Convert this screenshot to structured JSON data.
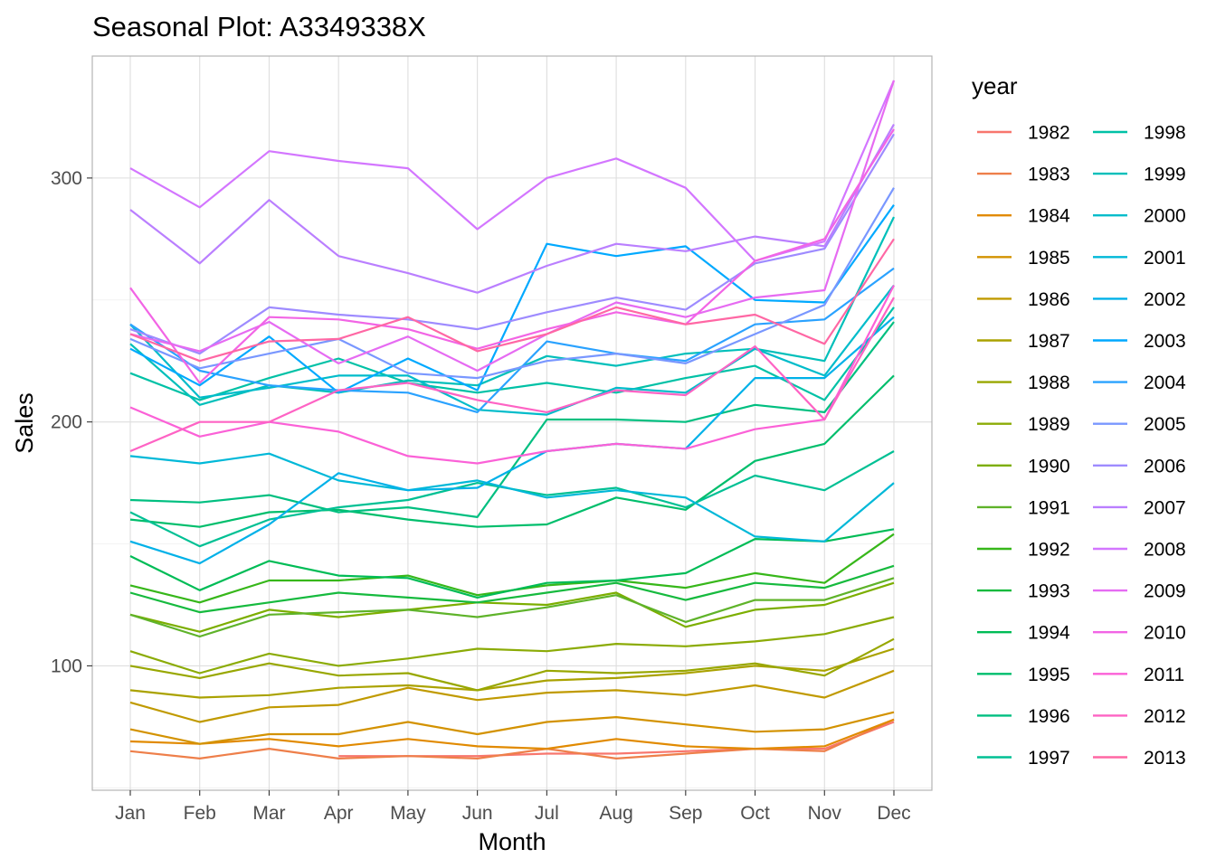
{
  "chart_data": {
    "type": "line",
    "title": "Seasonal Plot: A3349338X",
    "xlabel": "Month",
    "ylabel": "Sales",
    "categories": [
      "Jan",
      "Feb",
      "Mar",
      "Apr",
      "May",
      "Jun",
      "Jul",
      "Aug",
      "Sep",
      "Oct",
      "Nov",
      "Dec"
    ],
    "ylim": [
      49,
      350
    ],
    "yticks": [
      100,
      200,
      300
    ],
    "grid": true,
    "legend": {
      "title": "year",
      "position": "right",
      "columns": 2
    },
    "series": [
      {
        "name": "1982",
        "color": "#F8766D",
        "values": [
          null,
          null,
          null,
          63,
          63,
          63,
          64,
          64,
          65,
          66,
          66,
          77
        ]
      },
      {
        "name": "1983",
        "color": "#EE7F4A",
        "values": [
          65,
          62,
          66,
          62,
          63,
          62,
          66,
          62,
          64,
          66,
          65,
          78
        ]
      },
      {
        "name": "1984",
        "color": "#E18A00",
        "values": [
          69,
          68,
          70,
          67,
          70,
          67,
          66,
          70,
          67,
          66,
          67,
          78
        ]
      },
      {
        "name": "1985",
        "color": "#D39200",
        "values": [
          74,
          68,
          72,
          72,
          77,
          72,
          77,
          79,
          76,
          73,
          74,
          81
        ]
      },
      {
        "name": "1986",
        "color": "#C09A00",
        "values": [
          85,
          77,
          83,
          84,
          91,
          86,
          89,
          90,
          88,
          92,
          87,
          98
        ]
      },
      {
        "name": "1987",
        "color": "#AAA200",
        "values": [
          90,
          87,
          88,
          91,
          92,
          90,
          94,
          95,
          97,
          100,
          98,
          107
        ]
      },
      {
        "name": "1988",
        "color": "#98A700",
        "values": [
          100,
          95,
          101,
          96,
          97,
          90,
          98,
          97,
          98,
          101,
          96,
          111
        ]
      },
      {
        "name": "1989",
        "color": "#8BAB06",
        "values": [
          106,
          97,
          105,
          100,
          103,
          107,
          106,
          109,
          108,
          110,
          113,
          120
        ]
      },
      {
        "name": "1990",
        "color": "#7CAE00",
        "values": [
          121,
          114,
          123,
          120,
          123,
          126,
          125,
          130,
          116,
          123,
          125,
          134
        ]
      },
      {
        "name": "1991",
        "color": "#5FB32A",
        "values": [
          121,
          112,
          121,
          122,
          123,
          120,
          124,
          129,
          118,
          127,
          127,
          136
        ]
      },
      {
        "name": "1992",
        "color": "#37B71A",
        "values": [
          133,
          126,
          135,
          135,
          137,
          129,
          133,
          135,
          132,
          138,
          134,
          154
        ]
      },
      {
        "name": "1993",
        "color": "#16BA3E",
        "values": [
          130,
          122,
          126,
          130,
          128,
          126,
          130,
          134,
          127,
          134,
          132,
          141
        ]
      },
      {
        "name": "1994",
        "color": "#00BC56",
        "values": [
          145,
          131,
          143,
          137,
          136,
          128,
          134,
          135,
          138,
          152,
          151,
          156
        ]
      },
      {
        "name": "1995",
        "color": "#00BE6C",
        "values": [
          160,
          157,
          163,
          164,
          160,
          157,
          158,
          169,
          164,
          184,
          191,
          219
        ]
      },
      {
        "name": "1996",
        "color": "#00BF80",
        "values": [
          168,
          167,
          170,
          163,
          165,
          161,
          201,
          201,
          200,
          207,
          204,
          241
        ]
      },
      {
        "name": "1997",
        "color": "#00C094",
        "values": [
          163,
          149,
          160,
          165,
          168,
          175,
          170,
          173,
          165,
          178,
          172,
          188
        ]
      },
      {
        "name": "1998",
        "color": "#00C1A6",
        "values": [
          220,
          209,
          218,
          226,
          216,
          212,
          216,
          212,
          218,
          223,
          209,
          247
        ]
      },
      {
        "name": "1999",
        "color": "#00BFBA",
        "values": [
          232,
          207,
          215,
          212,
          217,
          215,
          227,
          223,
          228,
          230,
          225,
          284
        ]
      },
      {
        "name": "2000",
        "color": "#00BCCA",
        "values": [
          240,
          210,
          214,
          219,
          219,
          205,
          203,
          214,
          212,
          230,
          219,
          256
        ]
      },
      {
        "name": "2001",
        "color": "#00B8D8",
        "values": [
          186,
          183,
          187,
          176,
          172,
          176,
          169,
          172,
          169,
          153,
          151,
          175
        ]
      },
      {
        "name": "2002",
        "color": "#00B1E8",
        "values": [
          151,
          142,
          158,
          179,
          172,
          173,
          188,
          191,
          189,
          218,
          218,
          243
        ]
      },
      {
        "name": "2003",
        "color": "#00A9FF",
        "values": [
          230,
          215,
          235,
          212,
          226,
          213,
          273,
          268,
          272,
          250,
          249,
          289
        ]
      },
      {
        "name": "2004",
        "color": "#2AA2FF",
        "values": [
          240,
          221,
          215,
          213,
          212,
          204,
          233,
          228,
          225,
          240,
          242,
          263
        ]
      },
      {
        "name": "2005",
        "color": "#7997FF",
        "values": [
          234,
          222,
          228,
          234,
          220,
          218,
          225,
          228,
          224,
          236,
          248,
          296
        ]
      },
      {
        "name": "2006",
        "color": "#9E8BFF",
        "values": [
          238,
          228,
          247,
          244,
          242,
          238,
          245,
          251,
          246,
          265,
          271,
          318
        ]
      },
      {
        "name": "2007",
        "color": "#BA7FFF",
        "values": [
          287,
          265,
          291,
          268,
          261,
          253,
          264,
          273,
          270,
          276,
          272,
          322
        ]
      },
      {
        "name": "2008",
        "color": "#D376FF",
        "values": [
          304,
          288,
          311,
          307,
          304,
          279,
          300,
          308,
          296,
          266,
          274,
          340
        ]
      },
      {
        "name": "2009",
        "color": "#E66BF2",
        "values": [
          236,
          229,
          241,
          224,
          235,
          221,
          236,
          249,
          243,
          251,
          254,
          340
        ]
      },
      {
        "name": "2010",
        "color": "#F265E5",
        "values": [
          255,
          216,
          243,
          242,
          238,
          230,
          238,
          245,
          240,
          266,
          275,
          320
        ]
      },
      {
        "name": "2011",
        "color": "#FB61D7",
        "values": [
          206,
          194,
          200,
          196,
          186,
          183,
          188,
          191,
          189,
          197,
          201,
          256
        ]
      },
      {
        "name": "2012",
        "color": "#FE63C4",
        "values": [
          188,
          200,
          200,
          213,
          216,
          209,
          204,
          213,
          211,
          231,
          201,
          251
        ]
      },
      {
        "name": "2013",
        "color": "#FF67A4",
        "values": [
          236,
          225,
          233,
          234,
          243,
          229,
          236,
          247,
          240,
          244,
          232,
          275
        ]
      }
    ]
  }
}
